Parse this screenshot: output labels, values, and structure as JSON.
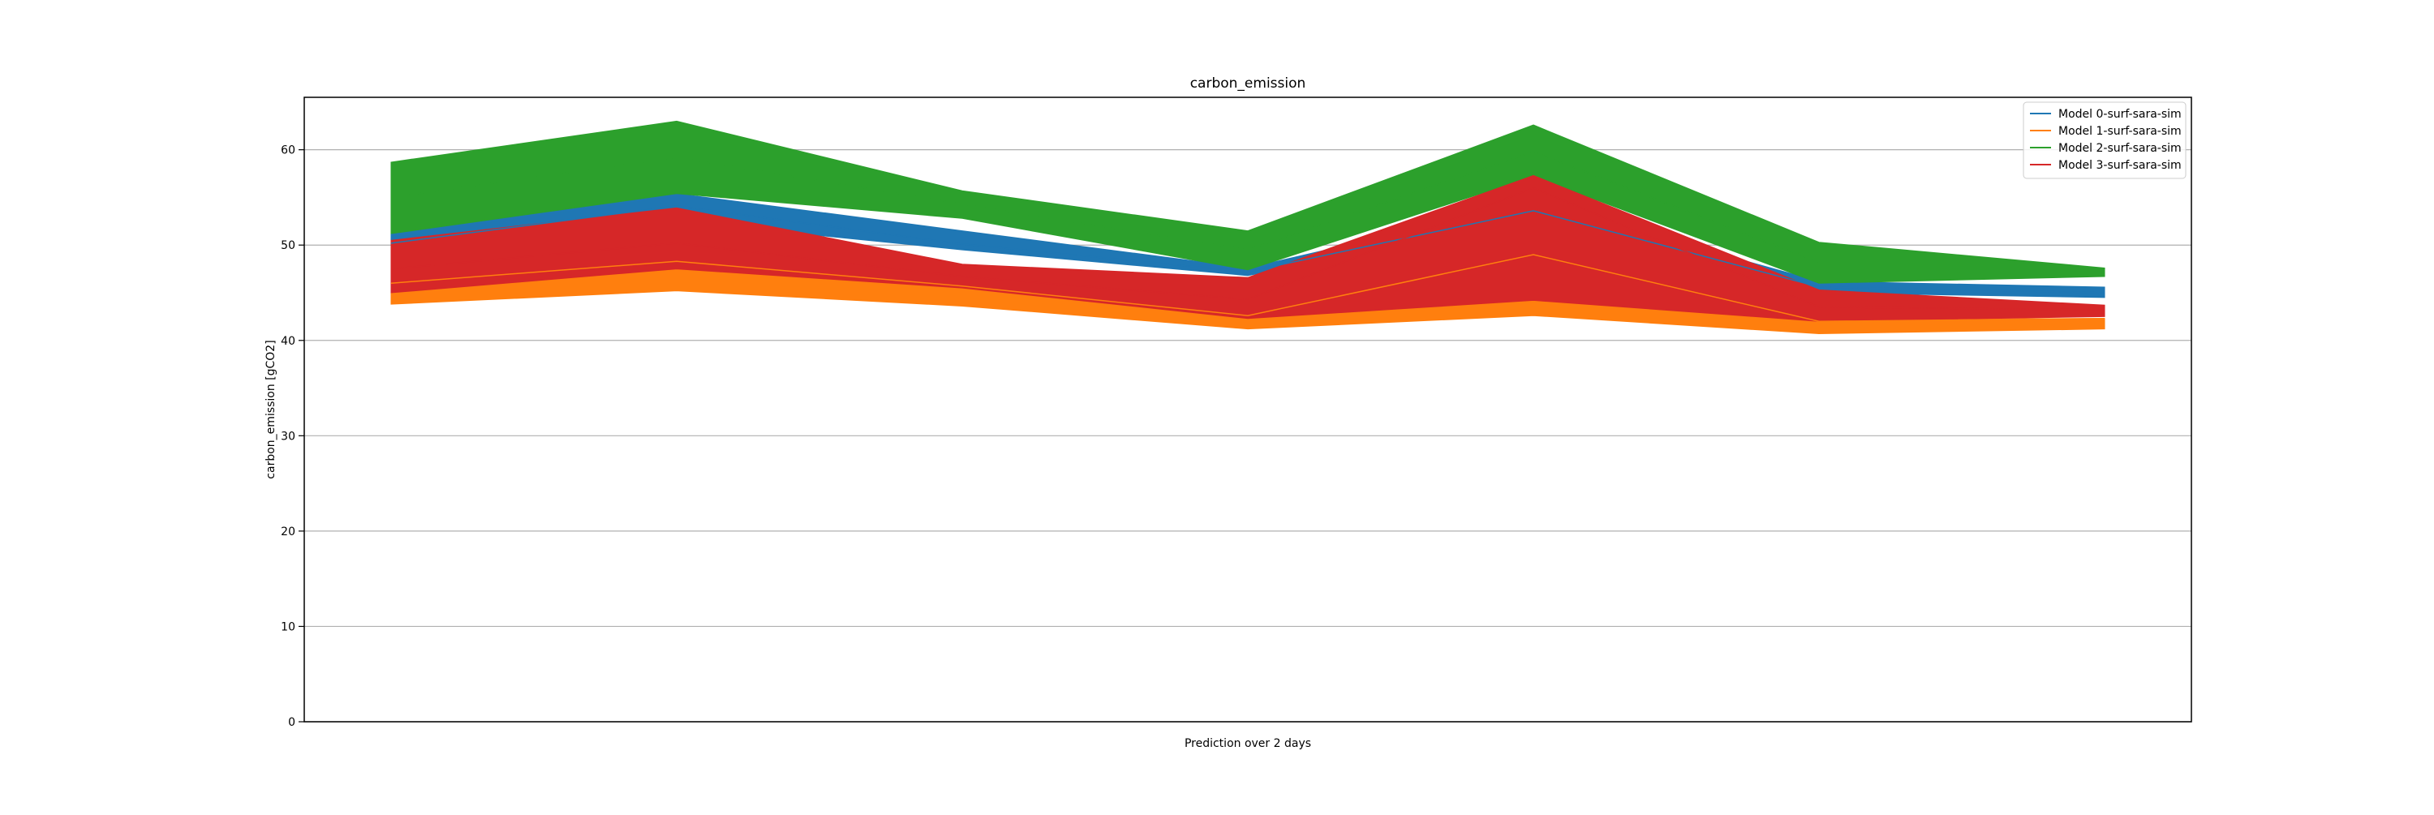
{
  "chart_data": {
    "type": "area",
    "title": "carbon_emission",
    "xlabel": "Prediction over 2 days",
    "ylabel": "carbon_emission [gCO2]",
    "ylim": [
      0,
      65.5
    ],
    "yticks": [
      0,
      10,
      20,
      30,
      40,
      50,
      60
    ],
    "x": [
      0,
      1,
      2,
      3,
      4,
      5,
      6
    ],
    "grid": "horizontal",
    "legend_position": "top-right",
    "series": [
      {
        "name": "Model 0-surf-sara-sim",
        "color": "#1f77b4",
        "lower": [
          49.3,
          52.5,
          49.5,
          46.8,
          52.7,
          45.0,
          44.5
        ],
        "mean": [
          50.2,
          54.1,
          50.1,
          47.2,
          53.6,
          45.6,
          45.0
        ],
        "upper": [
          51.5,
          55.4,
          51.5,
          47.6,
          54.5,
          46.2,
          45.6
        ]
      },
      {
        "name": "Model 1-surf-sara-sim",
        "color": "#ff7f0e",
        "lower": [
          43.8,
          45.2,
          43.6,
          41.2,
          42.6,
          40.7,
          41.2
        ],
        "mean": [
          46.0,
          48.3,
          45.7,
          42.6,
          49.0,
          42.0,
          42.3
        ],
        "upper": [
          45.3,
          47.8,
          45.9,
          42.8,
          44.5,
          42.2,
          42.3
        ]
      },
      {
        "name": "Model 2-surf-sara-sim",
        "color": "#2ca02c",
        "lower": [
          51.2,
          55.4,
          52.8,
          47.4,
          57.2,
          46.0,
          46.7
        ],
        "mean": [
          55.0,
          59.2,
          54.3,
          49.5,
          59.8,
          48.2,
          47.1
        ],
        "upper": [
          58.7,
          63.0,
          55.7,
          51.5,
          62.6,
          50.3,
          47.6
        ]
      },
      {
        "name": "Model 3-surf-sara-sim",
        "color": "#d62728",
        "lower": [
          45.0,
          47.5,
          45.5,
          42.3,
          44.2,
          42.0,
          42.5
        ],
        "mean": [
          47.5,
          50.2,
          46.7,
          44.3,
          56.0,
          43.5,
          43.2
        ],
        "upper": [
          50.5,
          53.9,
          48.0,
          46.6,
          57.3,
          45.3,
          43.7
        ]
      }
    ]
  }
}
